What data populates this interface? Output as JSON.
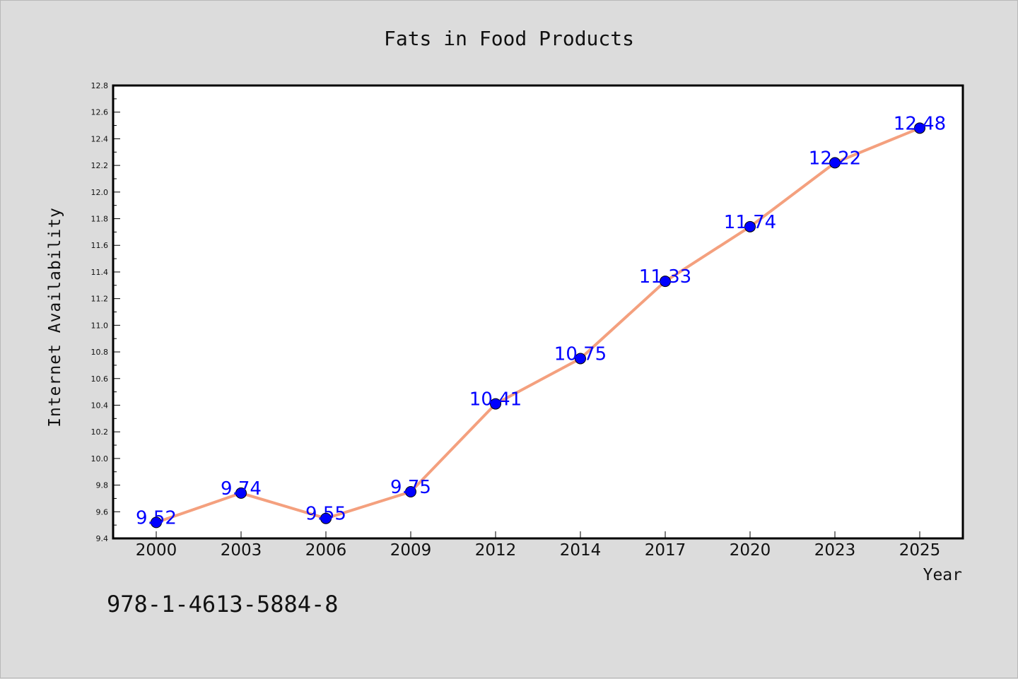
{
  "chart_data": {
    "type": "line",
    "title": "Fats in Food Products",
    "xlabel": "Year",
    "ylabel": "Internet Availability",
    "categories": [
      "2000",
      "2003",
      "2006",
      "2009",
      "2012",
      "2014",
      "2017",
      "2020",
      "2023",
      "2025"
    ],
    "series": [
      {
        "values": [
          9.52,
          9.74,
          9.55,
          9.75,
          10.41,
          10.75,
          11.33,
          11.74,
          12.22,
          12.48
        ],
        "line_color": "#f4a07e",
        "marker_color": "#0000ff"
      }
    ],
    "data_labels": [
      "9.52",
      "9.74",
      "9.55",
      "9.75",
      "10.41",
      "10.75",
      "11.33",
      "11.74",
      "12.22",
      "12.48"
    ],
    "ylim": [
      9.4,
      12.8
    ],
    "yticks": [
      "9.4",
      "9.6",
      "9.8",
      "10.0",
      "10.2",
      "10.4",
      "10.6",
      "10.8",
      "11.0",
      "11.2",
      "11.4",
      "11.6",
      "11.8",
      "12.0",
      "12.2",
      "12.4",
      "12.6",
      "12.8"
    ],
    "grid": false,
    "legend": "none"
  },
  "annotation": {
    "isbn": "978-1-4613-5884-8"
  },
  "colors": {
    "background": "#dcdcdc",
    "plot_background": "#ffffff",
    "line": "#f4a07e",
    "marker": "#0000ff",
    "data_label": "#0000ff"
  }
}
